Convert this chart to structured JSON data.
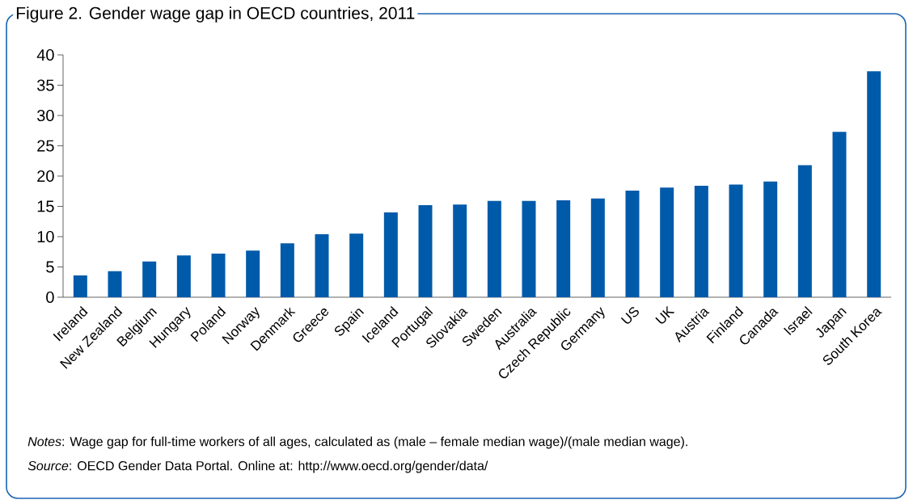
{
  "chart_data": {
    "type": "bar",
    "title": "Figure 2. Gender wage gap in OECD countries, 2011",
    "categories": [
      "Ireland",
      "New Zealand",
      "Belgium",
      "Hungary",
      "Poland",
      "Norway",
      "Denmark",
      "Greece",
      "Spain",
      "Iceland",
      "Portugal",
      "Slovakia",
      "Sweden",
      "Australia",
      "Czech Republic",
      "Germany",
      "US",
      "UK",
      "Austria",
      "Finland",
      "Canada",
      "Israel",
      "Japan",
      "South Korea"
    ],
    "values": [
      3.6,
      4.3,
      5.9,
      6.9,
      7.2,
      7.7,
      8.9,
      10.4,
      10.5,
      14.0,
      15.2,
      15.3,
      15.9,
      15.9,
      16.0,
      16.3,
      17.6,
      18.1,
      18.4,
      18.6,
      19.1,
      21.8,
      27.3,
      37.3
    ],
    "color": "#005aaa",
    "ylim": [
      0,
      40
    ],
    "yticks": [
      0,
      5,
      10,
      15,
      20,
      25,
      30,
      35,
      40
    ],
    "annotations": [
      "*Notes*: Wage gap for full-time workers of all ages, calculated as (male – female median wage)/(male median wage).",
      "*Source*: OECD Gender Data Portal. Online at: http://www.oecd.org/gender/data/"
    ]
  }
}
